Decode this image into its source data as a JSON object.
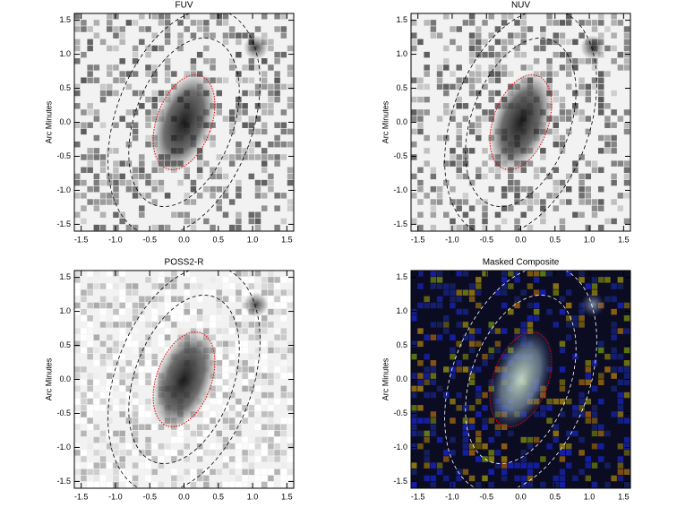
{
  "chart_data": [
    {
      "type": "image",
      "title": "FUV",
      "ylabel": "Arc Minutes",
      "colormap": "gray",
      "xlim": [
        -1.6,
        1.6
      ],
      "ylim": [
        -1.6,
        1.6
      ],
      "xticks": [
        -1.5,
        {
          "value": -1,
          "label": "-1.0"
        },
        -0.5,
        {
          "value": 0,
          "label": "0.0"
        },
        0.5,
        {
          "value": 1,
          "label": "1.0"
        },
        1.5
      ],
      "yticks": [
        -1.5,
        {
          "value": -1,
          "label": "-1.0"
        },
        -0.5,
        {
          "value": 0,
          "label": "0.0"
        },
        0.5,
        {
          "value": 1,
          "label": "1.0"
        },
        1.5
      ]
    },
    {
      "type": "image",
      "title": "NUV",
      "ylabel": "Arc Minutes",
      "colormap": "gray",
      "xlim": [
        -1.6,
        1.6
      ],
      "ylim": [
        -1.6,
        1.6
      ],
      "xticks": [
        -1.5,
        {
          "value": -1,
          "label": "-1.0"
        },
        -0.5,
        {
          "value": 0,
          "label": "0.0"
        },
        0.5,
        {
          "value": 1,
          "label": "1.0"
        },
        1.5
      ],
      "yticks": [
        -1.5,
        {
          "value": -1,
          "label": "-1.0"
        },
        -0.5,
        {
          "value": 0,
          "label": "0.0"
        },
        0.5,
        {
          "value": 1,
          "label": "1.0"
        },
        1.5
      ]
    },
    {
      "type": "image",
      "title": "POSS2-R",
      "ylabel": "Arc Minutes",
      "colormap": "gray",
      "xlim": [
        -1.6,
        1.6
      ],
      "ylim": [
        -1.6,
        1.6
      ],
      "xticks": [
        -1.5,
        {
          "value": -1,
          "label": "-1.0"
        },
        -0.5,
        {
          "value": 0,
          "label": "0.0"
        },
        0.5,
        {
          "value": 1,
          "label": "1.0"
        },
        1.5
      ],
      "yticks": [
        -1.5,
        {
          "value": -1,
          "label": "-1.0"
        },
        -0.5,
        {
          "value": 0,
          "label": "0.0"
        },
        0.5,
        {
          "value": 1,
          "label": "1.0"
        },
        1.5
      ]
    },
    {
      "type": "image",
      "title": "Masked Composite",
      "ylabel": "Arc Minutes",
      "colormap": "rgb",
      "xlim": [
        -1.6,
        1.6
      ],
      "ylim": [
        -1.6,
        1.6
      ],
      "xticks": [
        -1.5,
        {
          "value": -1,
          "label": "-1.0"
        },
        -0.5,
        {
          "value": 0,
          "label": "0.0"
        },
        0.5,
        {
          "value": 1,
          "label": "1.0"
        },
        1.5
      ],
      "yticks": [
        -1.5,
        {
          "value": -1,
          "label": "-1.0"
        },
        -0.5,
        {
          "value": 0,
          "label": "0.0"
        },
        0.5,
        {
          "value": 1,
          "label": "1.0"
        },
        1.5
      ]
    }
  ]
}
